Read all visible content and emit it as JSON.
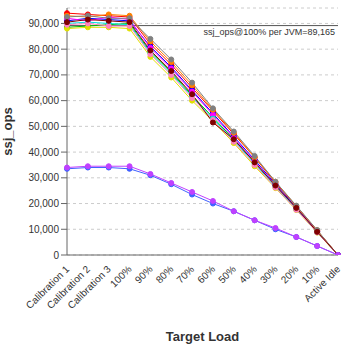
{
  "chart_data": {
    "type": "line",
    "x_label": "Target Load",
    "y_label": "ssj_ops",
    "categories": [
      "Calibration 1",
      "Calibration 2",
      "Calibration 3",
      "100%",
      "90%",
      "80%",
      "70%",
      "60%",
      "50%",
      "40%",
      "30%",
      "20%",
      "10%",
      "Active Idle"
    ],
    "ylim": [
      0,
      96000
    ],
    "yticks": [
      0,
      {
        "value": 10000,
        "label": "10,000"
      },
      {
        "value": 20000,
        "label": "20,000"
      },
      {
        "value": 30000,
        "label": "30,000"
      },
      {
        "value": 40000,
        "label": "40,000"
      },
      {
        "value": 50000,
        "label": "50,000"
      },
      {
        "value": 60000,
        "label": "60,000"
      },
      {
        "value": 70000,
        "label": "70,000"
      },
      {
        "value": 80000,
        "label": "80,000"
      },
      {
        "value": 90000,
        "label": "90,000"
      }
    ],
    "grid": true,
    "marker": "circle",
    "annotations": [
      {
        "y": 89165,
        "text": "ssj_ops@100% per JVM=89,165"
      }
    ],
    "series": [
      {
        "color": "#ff0000",
        "values": [
          94000,
          93500,
          93000,
          92500,
          82000,
          74000,
          65000,
          56000,
          47000,
          38000,
          28000,
          19000,
          9500,
          0
        ]
      },
      {
        "color": "#0000ff",
        "values": [
          91000,
          92000,
          91500,
          91000,
          81000,
          73000,
          64000,
          55000,
          46000,
          37000,
          27500,
          18500,
          9200,
          0
        ]
      },
      {
        "color": "#00c000",
        "values": [
          88500,
          89000,
          89500,
          90000,
          79000,
          71000,
          62000,
          53500,
          45000,
          36000,
          27000,
          18000,
          9000,
          0
        ]
      },
      {
        "color": "#e0e000",
        "values": [
          88000,
          88500,
          88500,
          88000,
          77000,
          69000,
          60000,
          52000,
          43500,
          34500,
          26000,
          17500,
          8700,
          0
        ]
      },
      {
        "color": "#ff00ff",
        "values": [
          92000,
          91000,
          92500,
          91500,
          80500,
          72500,
          63500,
          54500,
          45500,
          36500,
          27000,
          18200,
          9100,
          0
        ]
      },
      {
        "color": "#00e0e0",
        "values": [
          90000,
          90500,
          90000,
          89500,
          78500,
          70500,
          61500,
          53000,
          44500,
          35500,
          26500,
          17800,
          8900,
          0
        ]
      },
      {
        "color": "#ff8000",
        "values": [
          93000,
          92500,
          93500,
          93000,
          83000,
          75000,
          66000,
          56500,
          47500,
          38000,
          28500,
          19000,
          9600,
          0
        ]
      },
      {
        "color": "#ff80c0",
        "values": [
          89500,
          90000,
          89000,
          89000,
          78000,
          70000,
          61000,
          52500,
          44000,
          35000,
          26200,
          17600,
          8800,
          0
        ]
      },
      {
        "color": "#808080",
        "values": [
          92500,
          93000,
          92000,
          92000,
          84000,
          76000,
          67000,
          57000,
          48000,
          38500,
          28500,
          19200,
          9700,
          0
        ]
      },
      {
        "color": "#800000",
        "values": [
          90500,
          91500,
          91000,
          90500,
          79500,
          71500,
          62500,
          51500,
          45000,
          36000,
          27000,
          18300,
          9000,
          0
        ]
      },
      {
        "color": "#4060ff",
        "values": [
          33500,
          34000,
          34000,
          33500,
          31000,
          27500,
          23500,
          20000,
          17000,
          13500,
          10000,
          7000,
          3500,
          0
        ]
      },
      {
        "color": "#c040ff",
        "values": [
          34000,
          34500,
          34500,
          34500,
          31500,
          28000,
          24500,
          21000,
          17000,
          13500,
          10500,
          7000,
          3500,
          0
        ]
      }
    ]
  }
}
